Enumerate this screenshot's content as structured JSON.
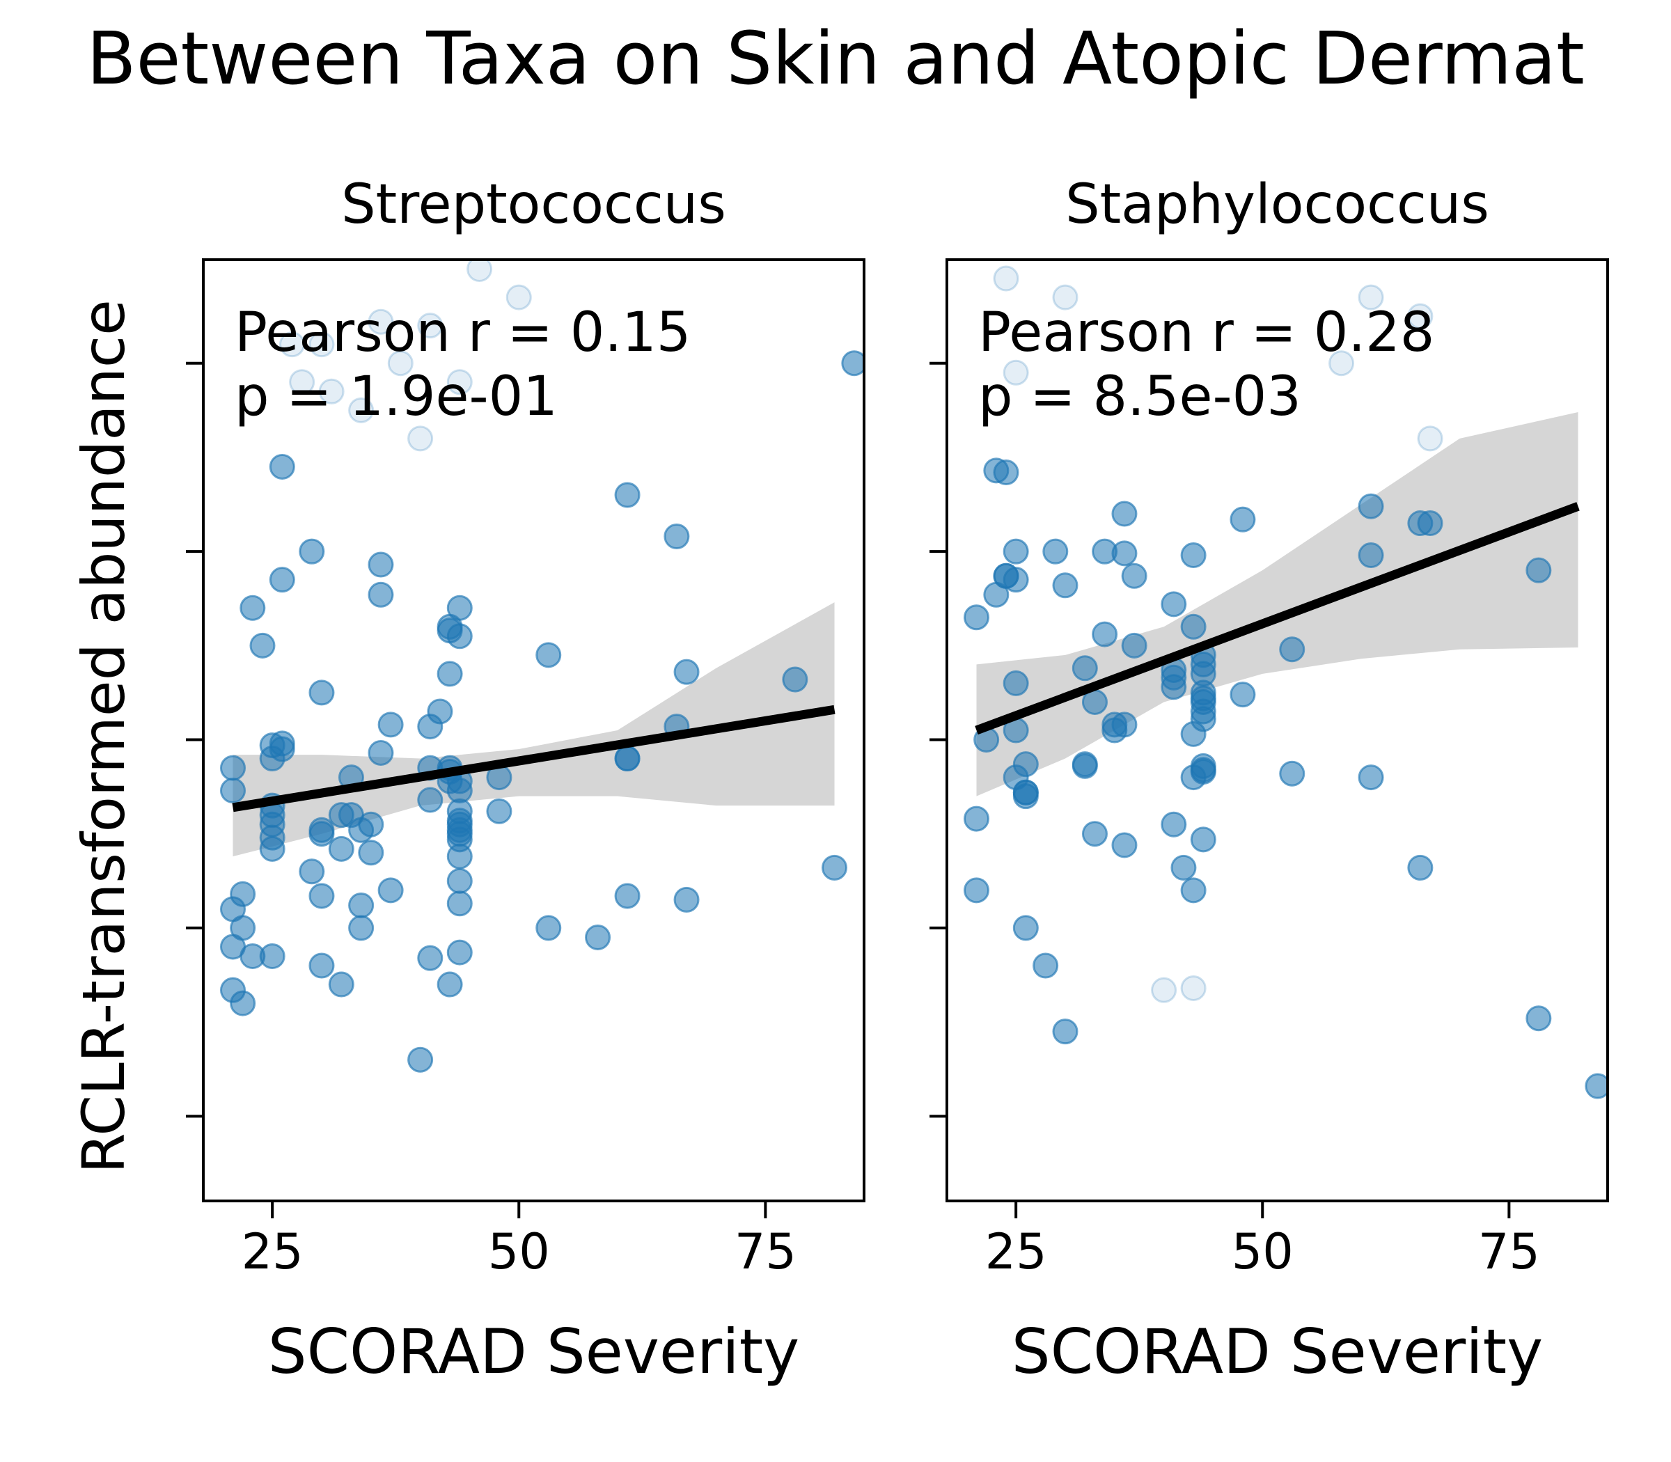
{
  "figure": {
    "title": "Between Taxa on Skin and Atopic Dermat",
    "ylabel": "RCLR-transformed abundance"
  },
  "colors": {
    "point": "#1f77b4",
    "fit_line": "#000000",
    "ci_band": "#d6d6d6"
  },
  "chart_data": [
    {
      "type": "scatter",
      "title": "Streptococcus",
      "xlabel": "SCORAD Severity",
      "ylabel": "RCLR-transformed abundance",
      "x_ticks": [
        25,
        50,
        75
      ],
      "xlim": [
        18,
        85
      ],
      "ylim": [
        -2.45,
        2.55
      ],
      "y_ticks_unlabeled": [
        -2.0,
        -1.0,
        0.0,
        1.0,
        2.0
      ],
      "annotation": [
        "Pearson r = 0.15",
        "p = 1.9e-01"
      ],
      "fit_line": {
        "x": [
          21,
          82
        ],
        "y": [
          -0.36,
          0.16
        ]
      },
      "ci_band": {
        "x": [
          21,
          30,
          40,
          50,
          60,
          70,
          82
        ],
        "upper": [
          -0.08,
          -0.08,
          -0.1,
          -0.05,
          0.05,
          0.38,
          0.73
        ],
        "lower": [
          -0.62,
          -0.5,
          -0.35,
          -0.3,
          -0.3,
          -0.35,
          -0.35
        ]
      },
      "points": {
        "x": [
          21,
          21,
          21,
          21,
          21,
          22,
          22,
          22,
          23,
          23,
          24,
          25,
          25,
          25,
          25,
          25,
          25,
          25,
          25,
          26,
          26,
          26,
          26,
          29,
          29,
          30,
          30,
          30,
          30,
          30,
          32,
          32,
          32,
          33,
          33,
          34,
          34,
          34,
          35,
          35,
          36,
          36,
          36,
          37,
          37,
          40,
          41,
          41,
          41,
          41,
          42,
          43,
          43,
          43,
          43,
          43,
          43,
          43,
          44,
          44,
          44,
          44,
          44,
          44,
          44,
          44,
          44,
          44,
          44,
          44,
          44,
          44,
          48,
          48,
          53,
          53,
          58,
          61,
          61,
          61,
          61,
          66,
          66,
          67,
          67,
          78,
          82,
          84,
          30,
          44,
          31,
          41,
          36,
          38,
          40,
          34,
          46,
          50,
          28,
          27
        ],
        "y": [
          -0.15,
          -0.27,
          -0.9,
          -1.1,
          -1.33,
          -1.0,
          -0.82,
          -1.4,
          -1.15,
          0.7,
          0.5,
          -0.35,
          -0.4,
          -0.45,
          -0.52,
          -0.58,
          -0.1,
          -1.15,
          -0.03,
          0.85,
          -0.02,
          -0.05,
          1.45,
          1.0,
          -0.7,
          -0.5,
          0.25,
          -0.83,
          -1.2,
          -0.48,
          -0.4,
          -0.58,
          -1.3,
          -0.2,
          -0.4,
          -0.88,
          -1.0,
          -0.48,
          -0.6,
          -0.45,
          0.93,
          0.77,
          -0.07,
          -0.8,
          0.08,
          -1.7,
          -0.15,
          -1.16,
          0.07,
          -0.32,
          0.15,
          -0.22,
          -0.17,
          -1.3,
          0.35,
          0.58,
          0.6,
          -0.15,
          -0.27,
          -0.43,
          -0.48,
          -0.53,
          -0.5,
          -0.62,
          0.55,
          -1.13,
          -0.75,
          0.7,
          -0.38,
          -0.45,
          -0.87,
          -0.22,
          -0.2,
          -0.38,
          0.45,
          -1.0,
          -1.05,
          -0.1,
          -0.1,
          1.3,
          -0.83,
          0.07,
          1.08,
          -0.85,
          0.36,
          0.32,
          -0.68,
          2.0,
          2.1,
          1.9,
          1.85,
          2.2,
          2.22,
          2.0,
          1.6,
          1.75,
          2.5,
          2.35,
          1.9,
          2.1
        ],
        "alpha": [
          0.55,
          0.55,
          0.55,
          0.55,
          0.55,
          0.55,
          0.55,
          0.55,
          0.55,
          0.55,
          0.55,
          0.55,
          0.55,
          0.55,
          0.55,
          0.55,
          0.55,
          0.55,
          0.55,
          0.55,
          0.55,
          0.55,
          0.55,
          0.55,
          0.55,
          0.55,
          0.55,
          0.55,
          0.55,
          0.55,
          0.55,
          0.55,
          0.55,
          0.55,
          0.55,
          0.55,
          0.55,
          0.55,
          0.55,
          0.55,
          0.55,
          0.55,
          0.55,
          0.55,
          0.55,
          0.55,
          0.55,
          0.55,
          0.55,
          0.55,
          0.55,
          0.55,
          0.55,
          0.55,
          0.55,
          0.55,
          0.55,
          0.55,
          0.55,
          0.55,
          0.55,
          0.55,
          0.55,
          0.55,
          0.55,
          0.55,
          0.55,
          0.55,
          0.55,
          0.55,
          0.55,
          0.55,
          0.55,
          0.55,
          0.55,
          0.55,
          0.55,
          0.55,
          0.55,
          0.55,
          0.55,
          0.55,
          0.55,
          0.55,
          0.55,
          0.55,
          0.55,
          0.55,
          0.12,
          0.12,
          0.12,
          0.12,
          0.12,
          0.12,
          0.12,
          0.12,
          0.12,
          0.12,
          0.12,
          0.12
        ]
      }
    },
    {
      "type": "scatter",
      "title": "Staphylococcus",
      "xlabel": "SCORAD Severity",
      "ylabel": "",
      "x_ticks": [
        25,
        50,
        75
      ],
      "xlim": [
        18,
        85
      ],
      "ylim": [
        -2.45,
        2.55
      ],
      "y_ticks_unlabeled": [
        -2.0,
        -1.0,
        0.0,
        1.0,
        2.0
      ],
      "annotation": [
        "Pearson r = 0.28",
        "p = 8.5e-03"
      ],
      "fit_line": {
        "x": [
          21,
          82
        ],
        "y": [
          0.05,
          1.24
        ]
      },
      "ci_band": {
        "x": [
          21,
          30,
          40,
          50,
          60,
          70,
          82
        ],
        "upper": [
          0.4,
          0.45,
          0.6,
          0.9,
          1.25,
          1.6,
          1.74
        ],
        "lower": [
          -0.3,
          -0.1,
          0.2,
          0.35,
          0.43,
          0.48,
          0.49
        ]
      },
      "points": {
        "x": [
          21,
          21,
          21,
          22,
          23,
          23,
          24,
          24,
          24,
          25,
          25,
          25,
          25,
          25,
          26,
          26,
          26,
          26,
          26,
          28,
          29,
          30,
          30,
          32,
          32,
          32,
          33,
          33,
          34,
          34,
          35,
          35,
          36,
          36,
          36,
          36,
          37,
          37,
          41,
          41,
          41,
          41,
          41,
          42,
          43,
          43,
          43,
          43,
          43,
          44,
          44,
          44,
          44,
          44,
          44,
          44,
          44,
          44,
          44,
          44,
          44,
          48,
          48,
          53,
          53,
          61,
          61,
          61,
          66,
          66,
          67,
          78,
          78,
          84,
          40,
          43,
          24,
          30,
          61,
          58,
          66,
          25,
          67
        ],
        "y": [
          0.65,
          -0.42,
          -0.8,
          0.0,
          0.77,
          1.43,
          1.42,
          0.87,
          0.87,
          0.85,
          1.0,
          0.3,
          0.05,
          -0.2,
          -0.28,
          -0.3,
          -1.0,
          -0.13,
          -0.28,
          -1.2,
          1.0,
          0.82,
          -1.55,
          -0.13,
          -0.14,
          0.38,
          0.2,
          -0.5,
          0.56,
          1.0,
          0.08,
          0.05,
          1.2,
          0.99,
          -0.56,
          0.08,
          0.5,
          0.87,
          0.72,
          0.33,
          -0.45,
          0.28,
          0.37,
          -0.68,
          0.03,
          -0.8,
          0.6,
          -0.2,
          0.98,
          0.11,
          0.45,
          0.35,
          0.4,
          -0.53,
          -0.14,
          0.25,
          -0.16,
          -0.17,
          0.15,
          0.2,
          0.22,
          1.17,
          0.24,
          0.48,
          -0.18,
          1.24,
          0.98,
          -0.2,
          1.15,
          -0.68,
          1.15,
          0.9,
          -1.48,
          -1.84,
          -1.33,
          -1.32,
          2.45,
          2.35,
          2.35,
          2.0,
          2.25,
          1.95,
          1.6
        ],
        "alpha": [
          0.55,
          0.55,
          0.55,
          0.55,
          0.55,
          0.55,
          0.55,
          0.55,
          0.55,
          0.55,
          0.55,
          0.55,
          0.55,
          0.55,
          0.55,
          0.55,
          0.55,
          0.55,
          0.55,
          0.55,
          0.55,
          0.55,
          0.55,
          0.55,
          0.55,
          0.55,
          0.55,
          0.55,
          0.55,
          0.55,
          0.55,
          0.55,
          0.55,
          0.55,
          0.55,
          0.55,
          0.55,
          0.55,
          0.55,
          0.55,
          0.55,
          0.55,
          0.55,
          0.55,
          0.55,
          0.55,
          0.55,
          0.55,
          0.55,
          0.55,
          0.55,
          0.55,
          0.55,
          0.55,
          0.55,
          0.55,
          0.55,
          0.55,
          0.55,
          0.55,
          0.55,
          0.55,
          0.55,
          0.55,
          0.55,
          0.55,
          0.55,
          0.55,
          0.55,
          0.55,
          0.55,
          0.55,
          0.55,
          0.55,
          0.12,
          0.12,
          0.12,
          0.12,
          0.12,
          0.12,
          0.12,
          0.12,
          0.12
        ]
      }
    }
  ]
}
